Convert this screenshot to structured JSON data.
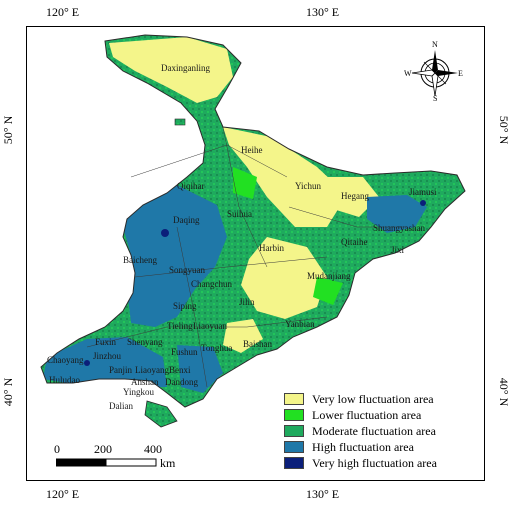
{
  "map": {
    "lon_ticks": [
      "120° E",
      "130° E"
    ],
    "lat_ticks": [
      "50° N",
      "40° N"
    ],
    "cities": [
      "Daxinganling",
      "Heihe",
      "Qiqihar",
      "Yichun",
      "Hegang",
      "Jiamusi",
      "Suihua",
      "Daqing",
      "Shuangyashan",
      "Qitaihe",
      "Jixi",
      "Harbin",
      "Baicheng",
      "Songyuan",
      "Mudanjiang",
      "Changchun",
      "Siping",
      "Jilin",
      "Tieling",
      "Liaoyuan",
      "Yanbian",
      "Fuxin",
      "Shenyang",
      "Fushun",
      "Tonghua",
      "Baishan",
      "Chaoyang",
      "Jinzhou",
      "Panjin",
      "Liaoyang",
      "Benxi",
      "Huludao",
      "Anshan",
      "Dandong",
      "Yingkou",
      "Dalian"
    ],
    "legend": [
      {
        "label": "Very low fluctuation area",
        "color": "#f4f58a"
      },
      {
        "label": "Lower fluctuation area",
        "color": "#22e022"
      },
      {
        "label": "Moderate fluctuation area",
        "color": "#1faa5e"
      },
      {
        "label": "High fluctuation area",
        "color": "#1f78a8"
      },
      {
        "label": "Very high fluctuation area",
        "color": "#0b1f7a"
      }
    ],
    "scale": {
      "ticks": [
        "0",
        "200",
        "400"
      ],
      "unit": "km"
    },
    "compass": {
      "n": "N",
      "s": "S",
      "e": "E",
      "w": "W"
    }
  }
}
